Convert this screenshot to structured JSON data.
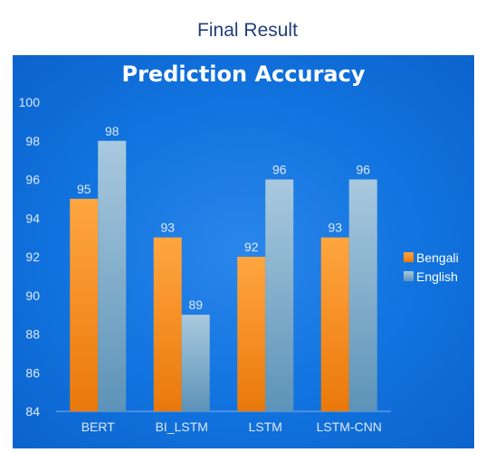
{
  "caption": "Final Result",
  "colors": {
    "bengali": "#f58a16",
    "english": "#8cb2cc",
    "panel": "#1173df"
  },
  "chart_data": {
    "type": "bar",
    "title": "Prediction Accuracy",
    "categories": [
      "BERT",
      "BI_LSTM",
      "LSTM",
      "LSTM-CNN"
    ],
    "series": [
      {
        "name": "Bengali",
        "values": [
          95,
          93,
          92,
          93
        ]
      },
      {
        "name": "English",
        "values": [
          98,
          89,
          96,
          96
        ]
      }
    ],
    "yticks": [
      84,
      86,
      88,
      90,
      92,
      94,
      96,
      98,
      100
    ],
    "ylim": [
      84,
      100
    ],
    "xlabel": "",
    "ylabel": "",
    "grid": false,
    "legend": "right"
  }
}
